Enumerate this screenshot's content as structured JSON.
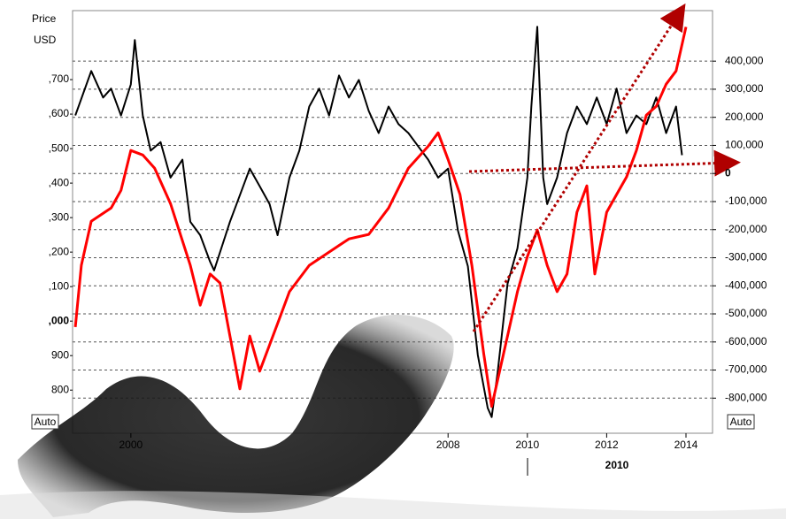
{
  "chart_data": {
    "type": "line",
    "ylabel_lines": [
      "Price",
      "USD"
    ],
    "buttons": [
      "Auto",
      "Auto"
    ],
    "annotations": [
      "2010"
    ],
    "grid": true,
    "xlim": [
      1998.53,
      2014.67
    ],
    "xticks": [
      2000,
      2008,
      2010,
      2012,
      2014
    ],
    "ylim": [
      675,
      1900
    ],
    "yticks": [
      {
        "value": 1700,
        "label": ",700"
      },
      {
        "value": 1600,
        "label": ",600"
      },
      {
        "value": 1500,
        "label": ",500"
      },
      {
        "value": 1400,
        "label": ",400"
      },
      {
        "value": 1300,
        "label": ",300"
      },
      {
        "value": 1200,
        "label": ",200"
      },
      {
        "value": 1100,
        "label": ",100"
      },
      {
        "value": 1000,
        "label": ",000",
        "bold": true
      },
      900,
      800
    ],
    "y2lim": [
      -925000,
      580000
    ],
    "y2ticks": [
      {
        "value": 400000,
        "label": "400,000"
      },
      {
        "value": 300000,
        "label": "300,000"
      },
      {
        "value": 200000,
        "label": "200,000"
      },
      {
        "value": 100000,
        "label": "100,000"
      },
      {
        "value": 0,
        "label": "0",
        "bold": true
      },
      {
        "value": -100000,
        "label": "-100,000"
      },
      {
        "value": -200000,
        "label": "-200,000"
      },
      {
        "value": -300000,
        "label": "-300,000"
      },
      {
        "value": -400000,
        "label": "-400,000"
      },
      {
        "value": -500000,
        "label": "-500,000"
      },
      {
        "value": -600000,
        "label": "-600,000"
      },
      {
        "value": -700000,
        "label": "-700,000"
      },
      {
        "value": -800000,
        "label": "-800,000"
      }
    ],
    "series": [
      {
        "color": "#000000",
        "x": [
          1998.6,
          1999,
          1999.3,
          1999.5,
          1999.75,
          2000,
          2000.1,
          2000.3,
          2000.5,
          2000.75,
          2001,
          2001.3,
          2001.5,
          2001.75,
          2002,
          2002.1,
          2002.5,
          2002.75,
          2003,
          2003.25,
          2003.5,
          2003.7,
          2004,
          2004.25,
          2004.5,
          2004.75,
          2005,
          2005.25,
          2005.5,
          2005.75,
          2006,
          2006.25,
          2006.5,
          2006.75,
          2007,
          2007.25,
          2007.5,
          2007.75,
          2008,
          2008.25,
          2008.5,
          2008.75,
          2009,
          2009.1,
          2009.25,
          2009.5,
          2009.75,
          2010,
          2010.1,
          2010.25,
          2010.4,
          2010.5,
          2010.75,
          2011,
          2011.25,
          2011.5,
          2011.75,
          2012,
          2012.25,
          2012.5,
          2012.75,
          2013,
          2013.25,
          2013.5,
          2013.75,
          2013.9
        ],
        "values": [
          1596,
          1725,
          1648,
          1674,
          1596,
          1686,
          1815,
          1596,
          1494,
          1519,
          1416,
          1468,
          1288,
          1249,
          1172,
          1147,
          1288,
          1365,
          1442,
          1391,
          1339,
          1249,
          1416,
          1494,
          1622,
          1674,
          1596,
          1712,
          1648,
          1699,
          1609,
          1545,
          1622,
          1571,
          1545,
          1506,
          1468,
          1416,
          1442,
          1262,
          1159,
          902,
          748,
          722,
          851,
          1108,
          1211,
          1416,
          1622,
          1853,
          1416,
          1339,
          1416,
          1545,
          1622,
          1571,
          1648,
          1571,
          1674,
          1545,
          1596,
          1571,
          1648,
          1545,
          1622,
          1481
        ]
      },
      {
        "color": "#ff0000",
        "axis": "y2",
        "x": [
          1998.6,
          1998.75,
          1999,
          1999.5,
          1999.75,
          2000,
          2000.3,
          2000.6,
          2001,
          2001.5,
          2001.75,
          2002,
          2002.25,
          2002.5,
          2002.75,
          2003,
          2003.25,
          2003.5,
          2003.75,
          2004,
          2004.5,
          2005,
          2005.5,
          2006,
          2006.5,
          2007,
          2007.5,
          2007.75,
          2008,
          2008.3,
          2008.6,
          2008.9,
          2009.1,
          2009.4,
          2009.75,
          2010,
          2010.25,
          2010.5,
          2010.75,
          2011,
          2011.25,
          2011.5,
          2011.7,
          2012,
          2012.25,
          2012.5,
          2012.75,
          2013,
          2013.25,
          2013.5,
          2013.75,
          2014
        ],
        "values": [
          -547000,
          -327000,
          -170000,
          -123000,
          -60000,
          82000,
          66000,
          19000,
          -107000,
          -327000,
          -469000,
          -358000,
          -390000,
          -579000,
          -767000,
          -579000,
          -704000,
          -610000,
          -516000,
          -421000,
          -327000,
          -280000,
          -233000,
          -217000,
          -123000,
          19000,
          97000,
          145000,
          50000,
          -75000,
          -327000,
          -642000,
          -830000,
          -642000,
          -421000,
          -296000,
          -201000,
          -327000,
          -421000,
          -358000,
          -138000,
          -44000,
          -358000,
          -138000,
          -75000,
          -13000,
          82000,
          208000,
          239000,
          318000,
          365000,
          522000
        ]
      }
    ]
  }
}
